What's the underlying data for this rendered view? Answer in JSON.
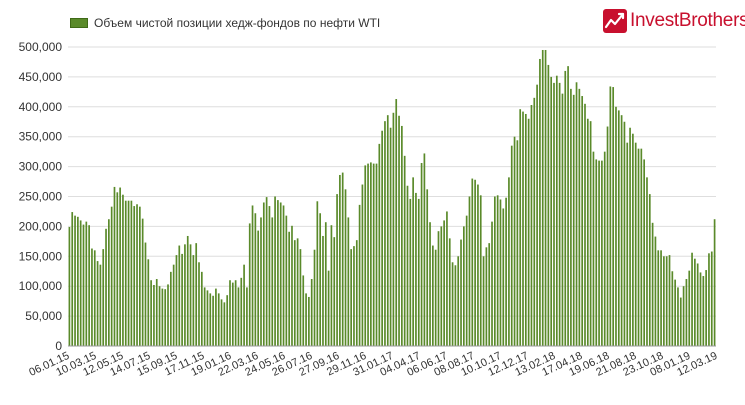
{
  "legend": {
    "label": "Объем чистой позиции хедж-фондов по нефти WTI",
    "color": "#5a8a2a"
  },
  "logo": {
    "text": "InvestBrothers",
    "icon": "chart-arrow-icon",
    "color": "#c8102e"
  },
  "chart_data": {
    "type": "bar",
    "title": "",
    "xlabel": "",
    "ylabel": "",
    "ylim": [
      0,
      500000
    ],
    "yticks": [
      0,
      50000,
      100000,
      150000,
      200000,
      250000,
      300000,
      350000,
      400000,
      450000,
      500000
    ],
    "ytick_labels": [
      "0",
      "50,000",
      "100,000",
      "150,000",
      "200,000",
      "250,000",
      "300,000",
      "350,000",
      "400,000",
      "450,000",
      "500,000"
    ],
    "xtick_labels": [
      "06.01.15",
      "10.03.15",
      "12.05.15",
      "14.07.15",
      "15.09.15",
      "17.11.15",
      "19.01.16",
      "22.03.16",
      "24.05.16",
      "26.07.16",
      "27.09.16",
      "29.11.16",
      "31.01.17",
      "04.04.17",
      "06.06.17",
      "08.08.17",
      "10.10.17",
      "12.12.17",
      "13.02.18",
      "17.04.18",
      "19.06.18",
      "21.08.18",
      "23.10.18",
      "08.01.19",
      "12.03.19"
    ],
    "grid": true,
    "legend_position": "top-left",
    "series": [
      {
        "name": "Объем чистой позиции хедж-фондов по нефти WTI",
        "color": "#5a8a2a",
        "values": [
          199000,
          224000,
          218000,
          216000,
          210000,
          203000,
          208000,
          202000,
          163000,
          160000,
          142000,
          136000,
          162000,
          196000,
          212000,
          233000,
          266000,
          257000,
          265000,
          253000,
          243000,
          243000,
          243000,
          234000,
          237000,
          233000,
          213000,
          173000,
          145000,
          110000,
          102000,
          112000,
          100000,
          96000,
          95000,
          103000,
          124000,
          136000,
          152000,
          168000,
          154000,
          170000,
          184000,
          170000,
          152000,
          172000,
          140000,
          124000,
          98000,
          93000,
          88000,
          84000,
          96000,
          88000,
          78000,
          73000,
          85000,
          110000,
          106000,
          110000,
          98000,
          114000,
          136000,
          98000,
          205000,
          235000,
          222000,
          193000,
          215000,
          240000,
          249000,
          234000,
          215000,
          250000,
          244000,
          240000,
          235000,
          218000,
          191000,
          201000,
          177000,
          180000,
          162000,
          118000,
          88000,
          82000,
          112000,
          161000,
          242000,
          222000,
          184000,
          207000,
          126000,
          202000,
          182000,
          254000,
          286000,
          290000,
          262000,
          215000,
          162000,
          167000,
          177000,
          236000,
          270000,
          302000,
          305000,
          307000,
          305000,
          305000,
          338000,
          360000,
          376000,
          386000,
          365000,
          390000,
          413000,
          385000,
          368000,
          318000,
          268000,
          246000,
          282000,
          256000,
          246000,
          306000,
          322000,
          262000,
          207000,
          168000,
          161000,
          192000,
          200000,
          210000,
          225000,
          180000,
          140000,
          135000,
          150000,
          178000,
          200000,
          218000,
          250000,
          280000,
          278000,
          270000,
          252000,
          150000,
          165000,
          172000,
          208000,
          250000,
          252000,
          245000,
          230000,
          248000,
          282000,
          335000,
          350000,
          344000,
          396000,
          392000,
          388000,
          380000,
          403000,
          415000,
          437000,
          480000,
          495000,
          495000,
          470000,
          450000,
          440000,
          452000,
          440000,
          422000,
          460000,
          468000,
          430000,
          420000,
          441000,
          430000,
          418000,
          405000,
          380000,
          376000,
          325000,
          312000,
          310000,
          310000,
          325000,
          367000,
          434000,
          433000,
          400000,
          394000,
          386000,
          375000,
          340000,
          365000,
          355000,
          340000,
          330000,
          330000,
          312000,
          282000,
          254000,
          206000,
          183000,
          160000,
          160000,
          150000,
          150000,
          152000,
          125000,
          111000,
          98000,
          81000,
          100000,
          112000,
          126000,
          156000,
          146000,
          138000,
          123000,
          117000,
          127000,
          155000,
          158000,
          212000
        ]
      }
    ]
  }
}
